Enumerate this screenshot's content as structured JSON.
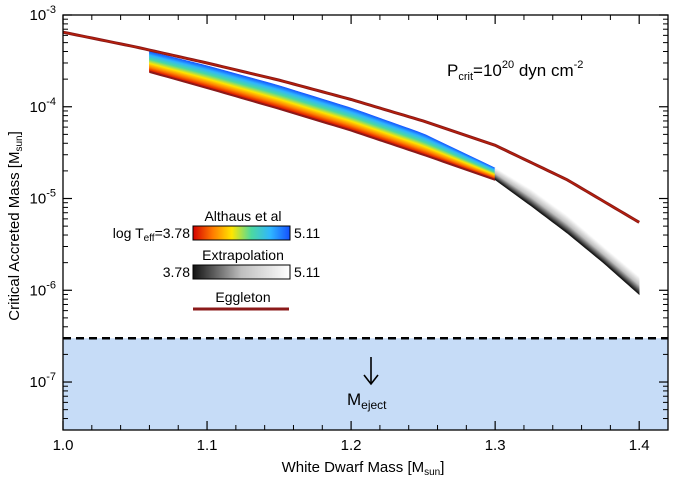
{
  "colors": {
    "background": "#ffffff",
    "axes": "#000000",
    "eggleton": "#8b1a1a",
    "eggleton_edge": "#cc2200",
    "eject_band": "#c6dcf7",
    "eject_line": "#000000",
    "althaus_colormap": [
      "#d40000",
      "#ff7a00",
      "#ffe600",
      "#4cd9a0",
      "#2fb6ff",
      "#1450ff"
    ],
    "extrap_colormap": [
      "#111111",
      "#bfbfbf",
      "#ffffff"
    ]
  },
  "annotations": {
    "pcrit": {
      "prefix": "P",
      "sub": "crit",
      "mid": "=10",
      "sup": "20",
      "suffix": " dyn cm",
      "sup2": "-2"
    },
    "meject": {
      "main": "M",
      "sub": "eject"
    }
  },
  "legend": {
    "althaus": {
      "title": "Althaus et al",
      "left_prefix": "log T",
      "left_sub": "eff",
      "left_value": "=3.78",
      "right_value": "5.11"
    },
    "extrapolation": {
      "title": "Extrapolation",
      "left_value": "3.78",
      "right_value": "5.11"
    },
    "eggleton": {
      "title": "Eggleton"
    }
  },
  "chart_data": {
    "type": "line",
    "title": "",
    "xlabel": {
      "main": "White Dwarf Mass [M",
      "sub": "sun",
      "close": "]"
    },
    "ylabel": {
      "main": "Critical Accreted Mass [M",
      "sub": "sun",
      "close": "]"
    },
    "xlim": [
      1.0,
      1.42
    ],
    "ylim": [
      3e-08,
      0.001
    ],
    "yscale": "log",
    "x_ticks": [
      "1.0",
      "1.1",
      "1.2",
      "1.3",
      "1.4"
    ],
    "x_tick_values": [
      1.0,
      1.1,
      1.2,
      1.3,
      1.4
    ],
    "y_ticks": [
      {
        "value": 1e-07,
        "base": "10",
        "exp": "-7"
      },
      {
        "value": 1e-06,
        "base": "10",
        "exp": "-6"
      },
      {
        "value": 1e-05,
        "base": "10",
        "exp": "-5"
      },
      {
        "value": 0.0001,
        "base": "10",
        "exp": "-4"
      },
      {
        "value": 0.001,
        "base": "10",
        "exp": "-3"
      }
    ],
    "series": [
      {
        "name": "Eggleton",
        "x": [
          1.0,
          1.05,
          1.1,
          1.15,
          1.2,
          1.25,
          1.3,
          1.35,
          1.4
        ],
        "y": [
          0.00065,
          0.00045,
          0.0003,
          0.000195,
          0.00012,
          7e-05,
          3.8e-05,
          1.6e-05,
          5.5e-06
        ]
      },
      {
        "name": "Althaus et al",
        "x": [
          1.06,
          1.1,
          1.15,
          1.2,
          1.25,
          1.3
        ],
        "y_low": [
          0.00024,
          0.00016,
          9.5e-05,
          5.5e-05,
          3e-05,
          1.6e-05
        ],
        "y_high": [
          0.0004,
          0.00028,
          0.00017,
          9.7e-05,
          5.1e-05,
          2.15e-05
        ],
        "color_range": [
          3.78,
          5.11
        ]
      },
      {
        "name": "Extrapolation",
        "x": [
          1.3,
          1.325,
          1.35,
          1.375,
          1.4
        ],
        "y_low": [
          1.6e-05,
          8.3e-06,
          4.2e-06,
          2e-06,
          9e-07
        ],
        "y_high": [
          2.15e-05,
          1.25e-05,
          6.5e-06,
          3e-06,
          1.4e-06
        ],
        "color_range": [
          3.78,
          5.11
        ]
      },
      {
        "name": "M_eject",
        "threshold": 3e-07
      }
    ]
  }
}
